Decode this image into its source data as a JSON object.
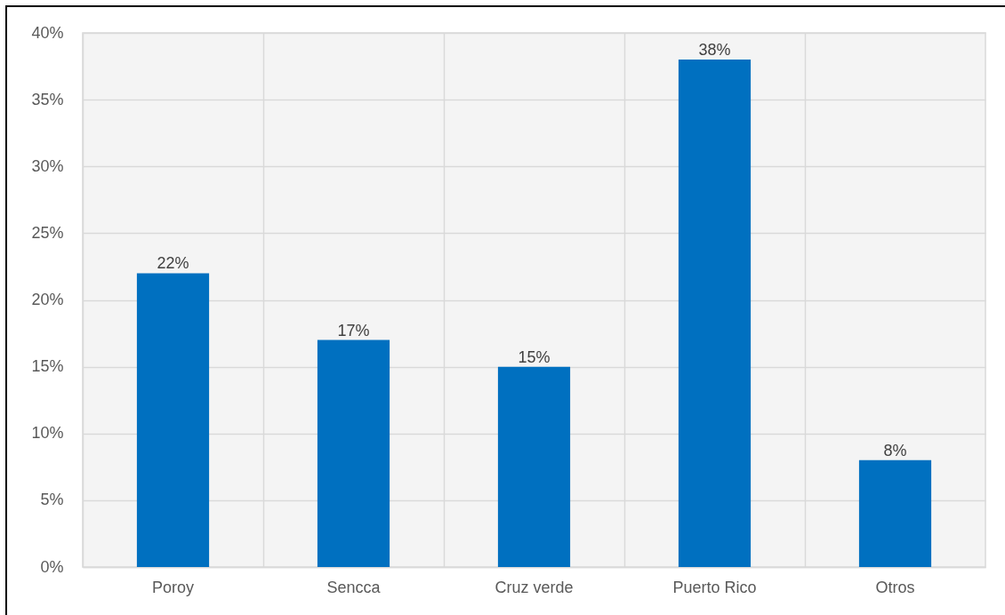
{
  "chart_data": {
    "type": "bar",
    "categories": [
      "Poroy",
      "Sencca",
      "Cruz verde",
      "Puerto Rico",
      "Otros"
    ],
    "values": [
      22,
      17,
      15,
      38,
      8
    ],
    "color": "#0070c0",
    "value_labels": [
      "22%",
      "17%",
      "15%",
      "38%",
      "8%"
    ],
    "ylim": [
      0,
      40
    ],
    "yticks": [
      {
        "value": 0,
        "label": "0%"
      },
      {
        "value": 5,
        "label": "5%"
      },
      {
        "value": 10,
        "label": "10%"
      },
      {
        "value": 15,
        "label": "15%"
      },
      {
        "value": 20,
        "label": "20%"
      },
      {
        "value": 25,
        "label": "25%"
      },
      {
        "value": 30,
        "label": "30%"
      },
      {
        "value": 35,
        "label": "35%"
      },
      {
        "value": 40,
        "label": "40%"
      }
    ],
    "grid": true
  }
}
